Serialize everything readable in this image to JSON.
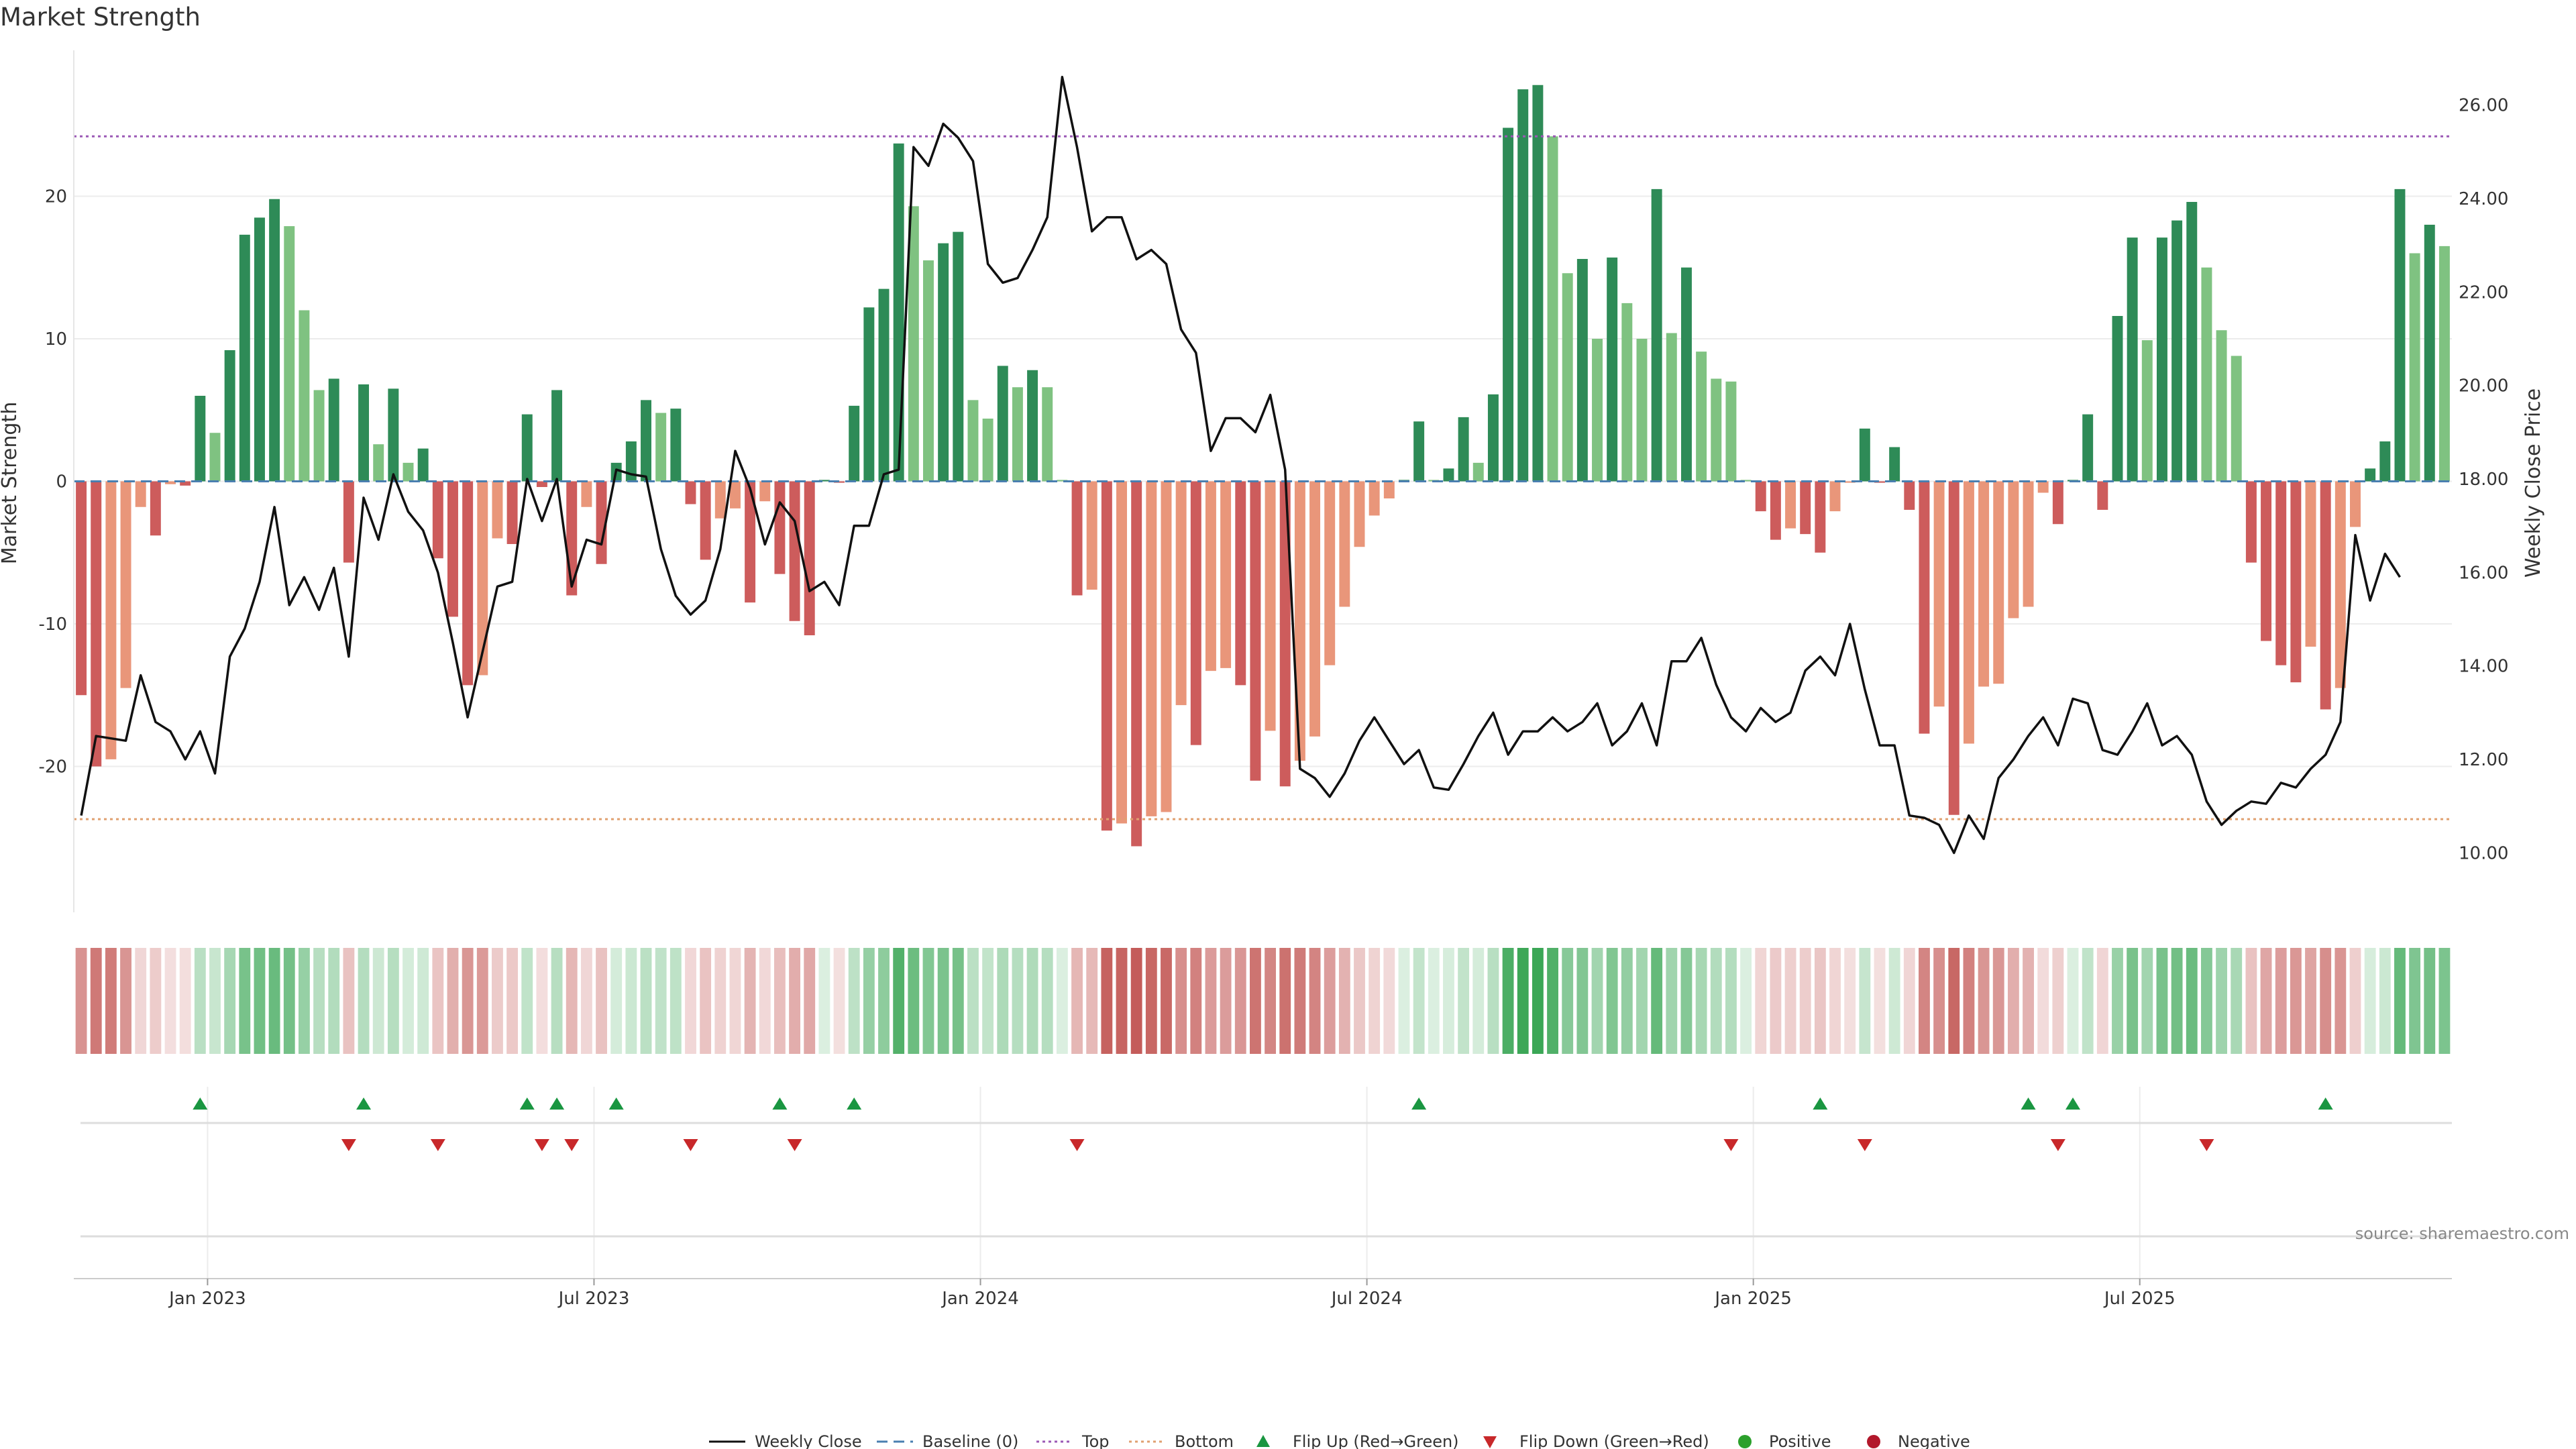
{
  "chart_data": {
    "type": "bar",
    "title": "Market Strength",
    "ylabel_left": "Market Strength",
    "ylabel_right": "Weekly Close Price",
    "source": "source: sharemaestro.com",
    "ylim_left": [
      -30,
      30
    ],
    "ylim_right": [
      8.8,
      27.1
    ],
    "top_level": 24.2,
    "bottom_level": -23.7,
    "grid": true,
    "legend_position": "bottom-center",
    "left_ticks": [
      "-20",
      "-10",
      "0",
      "10",
      "20"
    ],
    "right_ticks": [
      "10.00",
      "12.00",
      "14.00",
      "16.00",
      "18.00",
      "20.00",
      "22.00",
      "24.00",
      "26.00"
    ],
    "x_ticks": [
      "Jan 2023",
      "Jul 2023",
      "Jan 2024",
      "Jul 2024",
      "Jan 2025",
      "Jul 2025"
    ],
    "x_tick_weeks": [
      9,
      35,
      61,
      87,
      113,
      139
    ],
    "strength": [
      -15,
      -20,
      -19.5,
      -14.5,
      -1.8,
      -3.8,
      -0.2,
      -0.3,
      6,
      3.4,
      9.2,
      17.3,
      18.5,
      19.8,
      17.9,
      12,
      6.4,
      7.2,
      -5.7,
      6.8,
      2.6,
      6.5,
      1.3,
      2.3,
      -5.4,
      -9.5,
      -14.3,
      -13.6,
      -4,
      -4.4,
      4.7,
      -0.4,
      6.4,
      -8,
      -1.8,
      -5.8,
      1.3,
      2.8,
      5.7,
      4.8,
      5.1,
      -1.6,
      -5.5,
      -2.6,
      -1.9,
      -8.5,
      -1.4,
      -6.5,
      -9.8,
      -10.8,
      0.1,
      -0.1,
      5.3,
      12.2,
      13.5,
      23.7,
      19.3,
      15.5,
      16.7,
      17.5,
      5.7,
      4.4,
      8.1,
      6.6,
      7.8,
      6.6,
      0.1,
      -8,
      -7.6,
      -24.5,
      -24,
      -25.6,
      -23.5,
      -23.2,
      -15.7,
      -18.5,
      -13.3,
      -13.1,
      -14.3,
      -21,
      -17.5,
      -21.4,
      -19.6,
      -17.9,
      -12.9,
      -8.8,
      -4.6,
      -2.4,
      -1.2,
      0.1,
      4.2,
      0.1,
      0.9,
      4.5,
      1.3,
      6.1,
      24.8,
      27.5,
      27.8,
      24.2,
      14.6,
      15.6,
      10,
      15.7,
      12.5,
      10,
      20.5,
      10.4,
      15,
      9.1,
      7.2,
      7,
      0.1,
      -2.1,
      -4.1,
      -3.3,
      -3.7,
      -5,
      -2.1,
      -0.1,
      3.7,
      -0.1,
      2.4,
      -2,
      -17.7,
      -15.8,
      -23.4,
      -18.4,
      -14.4,
      -14.2,
      -9.6,
      -8.8,
      -0.8,
      -3,
      0.1,
      4.7,
      -2,
      11.6,
      17.1,
      9.9,
      17.1,
      18.3,
      19.6,
      15,
      10.6,
      8.8,
      -5.7,
      -11.2,
      -12.9,
      -14.1,
      -11.6,
      -16,
      -14.5,
      -3.2,
      0.9,
      2.8,
      20.5,
      16,
      18,
      16.5
    ],
    "weekly_close": [
      10.8,
      12.5,
      12.45,
      12.4,
      13.8,
      12.8,
      12.6,
      12,
      12.6,
      11.7,
      14.2,
      14.8,
      15.8,
      17.4,
      15.3,
      15.9,
      15.2,
      16.1,
      14.2,
      17.6,
      16.7,
      18.1,
      17.3,
      16.9,
      16,
      14.5,
      12.9,
      14.3,
      15.7,
      15.8,
      18,
      17.1,
      18,
      15.7,
      16.7,
      16.6,
      18.2,
      18.1,
      18.05,
      16.5,
      15.5,
      15.1,
      15.4,
      16.5,
      18.6,
      17.8,
      16.6,
      17.5,
      17.1,
      15.6,
      15.8,
      15.3,
      17,
      17,
      18.1,
      18.2,
      25.1,
      24.7,
      25.6,
      25.3,
      24.8,
      22.6,
      22.2,
      22.3,
      22.9,
      23.6,
      26.6,
      25.1,
      23.3,
      23.6,
      23.6,
      22.7,
      22.9,
      22.6,
      21.2,
      20.7,
      18.6,
      19.3,
      19.3,
      19,
      19.8,
      18.2,
      11.8,
      11.6,
      11.2,
      11.7,
      12.4,
      12.9,
      12.4,
      11.9,
      12.2,
      11.4,
      11.35,
      11.9,
      12.5,
      13,
      12.1,
      12.6,
      12.6,
      12.9,
      12.6,
      12.8,
      13.2,
      12.3,
      12.6,
      13.2,
      12.3,
      14.1,
      14.1,
      14.6,
      13.6,
      12.9,
      12.6,
      13.1,
      12.8,
      13,
      13.9,
      14.2,
      13.8,
      14.9,
      13.5,
      12.3,
      12.3,
      10.8,
      10.75,
      10.6,
      10,
      10.8,
      10.3,
      11.6,
      12,
      12.5,
      12.9,
      12.3,
      13.3,
      13.2,
      12.2,
      12.1,
      12.6,
      13.2,
      12.3,
      12.5,
      12.1,
      11.1,
      10.6,
      10.9,
      11.1,
      11.05,
      11.5,
      11.4,
      11.8,
      12.1,
      12.8,
      16.8,
      15.4,
      16.4,
      15.9
    ],
    "flip_up_weeks": [
      8,
      19,
      30,
      32,
      36,
      47,
      52,
      90,
      117,
      131,
      134,
      151
    ],
    "flip_down_weeks": [
      18,
      24,
      31,
      33,
      41,
      48,
      67,
      111,
      120,
      133,
      143
    ],
    "legend": [
      "Weekly Close",
      "Baseline (0)",
      "Top",
      "Bottom",
      "Flip Up (Red→Green)",
      "Flip Down (Green→Red)",
      "Positive",
      "Negative"
    ]
  },
  "colors": {
    "positive_dark": "#2e8b57",
    "positive_light": "#7fc281",
    "negative_dark": "#cd5c5c",
    "negative_light": "#e9967a",
    "top_line": "#9b59b6",
    "bottom_line": "#e0a070",
    "baseline": "#4a7fb0",
    "price_line": "#111111",
    "flip_up": "#1a9641",
    "flip_down": "#c8282a",
    "legend_positive": "#2ca02c",
    "legend_negative": "#b2182b"
  }
}
